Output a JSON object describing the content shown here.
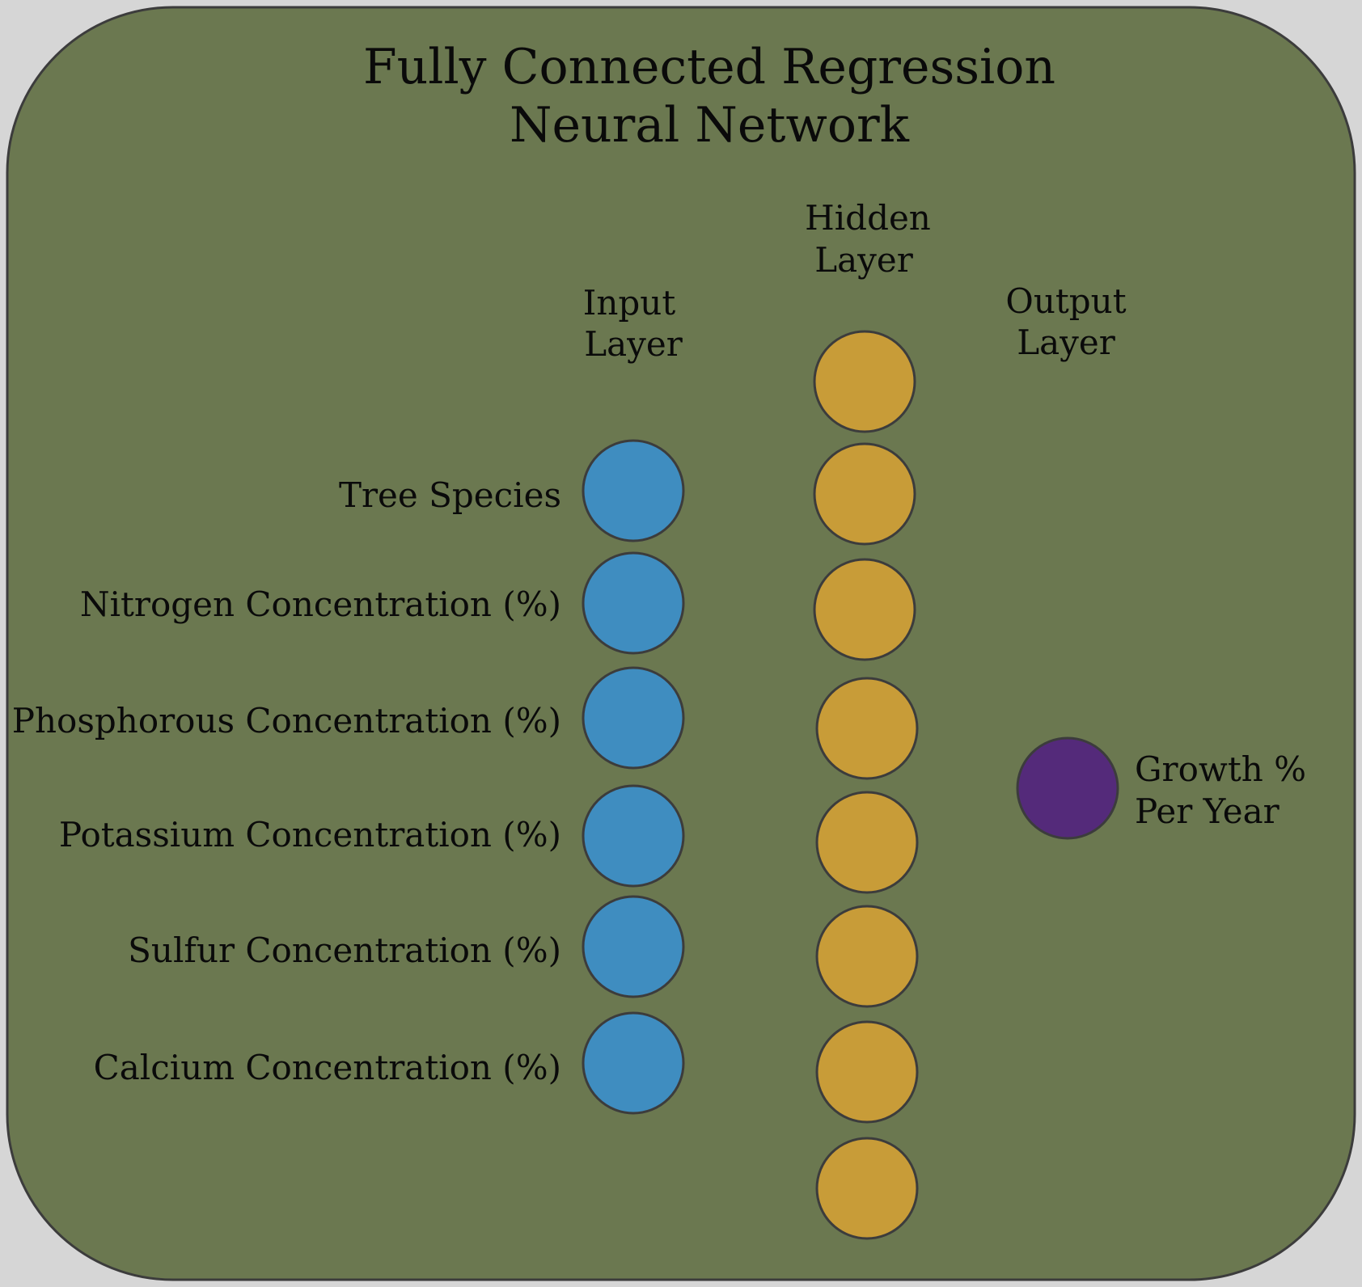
{
  "title": {
    "line1": "Fully Connected Regression",
    "line2": "Neural Network"
  },
  "colors": {
    "page_background": "#d6d6d6",
    "panel_background": "#6b7850",
    "panel_border": "#3c3c3c",
    "input_node": "#3f8dc0",
    "hidden_node": "#c89c38",
    "output_node": "#542a7a"
  },
  "layers": {
    "input": {
      "label_line1": "Input",
      "label_line2": "Layer",
      "nodes": [
        "Tree Species",
        "Nitrogen Concentration (%)",
        "Phosphorous Concentration (%)",
        "Potassium Concentration (%)",
        "Sulfur Concentration (%)",
        "Calcium Concentration (%)"
      ]
    },
    "hidden": {
      "label_line1": "Hidden",
      "label_line2": "Layer",
      "node_count": 8
    },
    "output": {
      "label_line1": "Output",
      "label_line2": "Layer",
      "node_label_line1": "Growth %",
      "node_label_line2": "Per Year"
    }
  }
}
